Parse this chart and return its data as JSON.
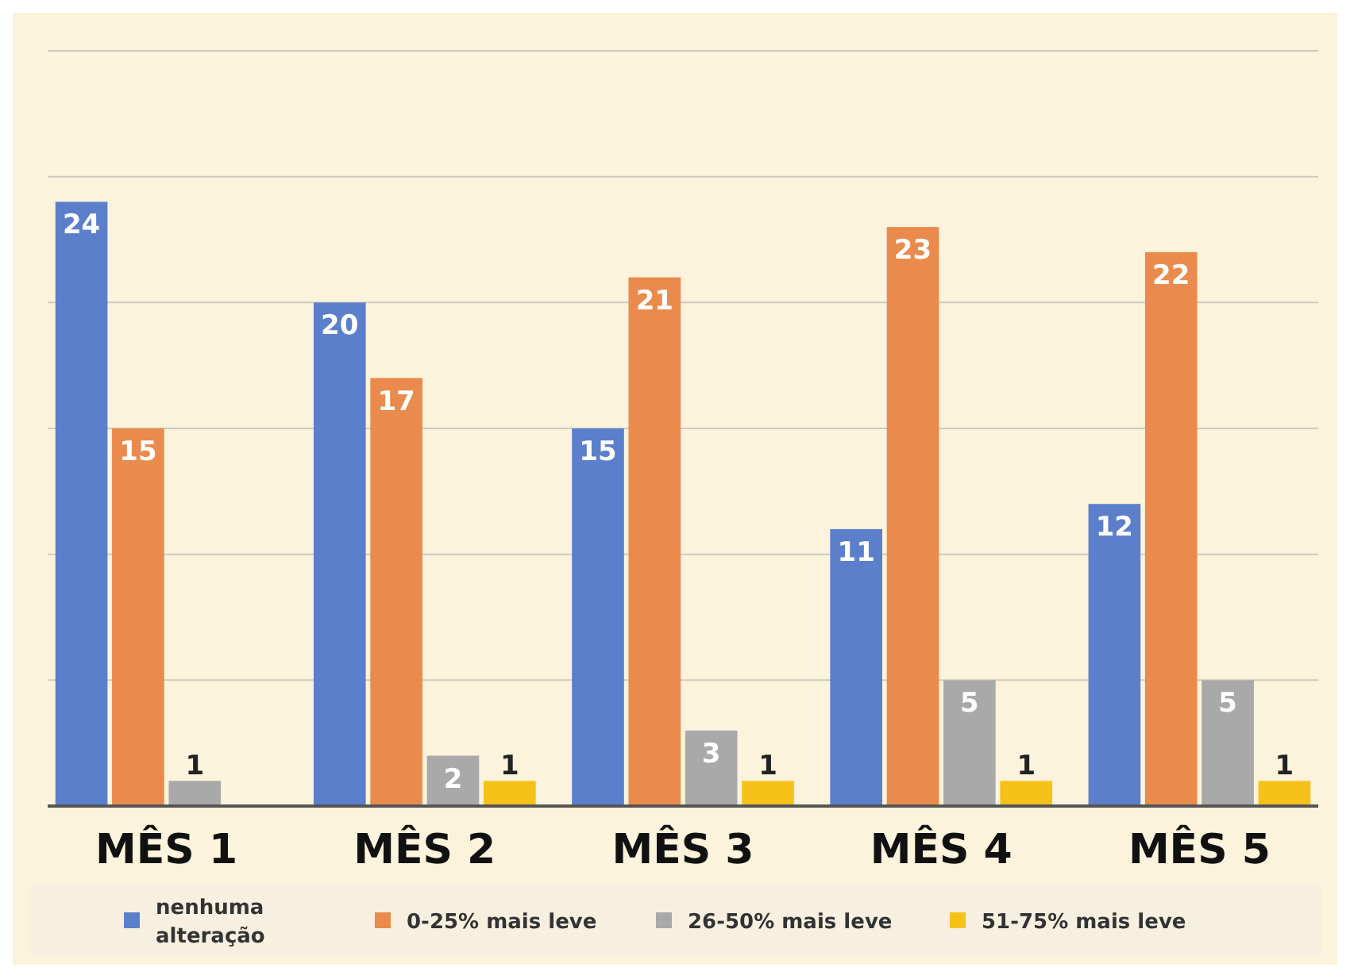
{
  "chart_data": {
    "type": "bar",
    "categories": [
      "MÊS 1",
      "MÊS 2",
      "MÊS 3",
      "MÊS 4",
      "MÊS 5"
    ],
    "series": [
      {
        "name": "nenhuma alteração",
        "color": "#5b7fcb",
        "values": [
          24,
          20,
          15,
          11,
          12
        ]
      },
      {
        "name": "0-25% mais leve",
        "color": "#ea8a4c",
        "values": [
          15,
          17,
          21,
          23,
          22
        ]
      },
      {
        "name": "26-50% mais leve",
        "color": "#a9a9a9",
        "values": [
          1,
          2,
          3,
          5,
          5
        ]
      },
      {
        "name": "51-75% mais leve",
        "color": "#f6c21a",
        "values": [
          null,
          1,
          1,
          1,
          1
        ]
      }
    ],
    "ylim": [
      0,
      30
    ],
    "yticks": [
      {
        "value": 0,
        "label": null
      },
      {
        "value": 5,
        "label": null
      },
      {
        "value": 10,
        "label": null
      },
      {
        "value": 15,
        "label": null
      },
      {
        "value": 20,
        "label": null
      },
      {
        "value": 25,
        "label": null
      },
      {
        "value": 30,
        "label": null
      }
    ],
    "tick_labels": "x",
    "grid": "y",
    "data_labels": true,
    "legend": "bottom"
  }
}
